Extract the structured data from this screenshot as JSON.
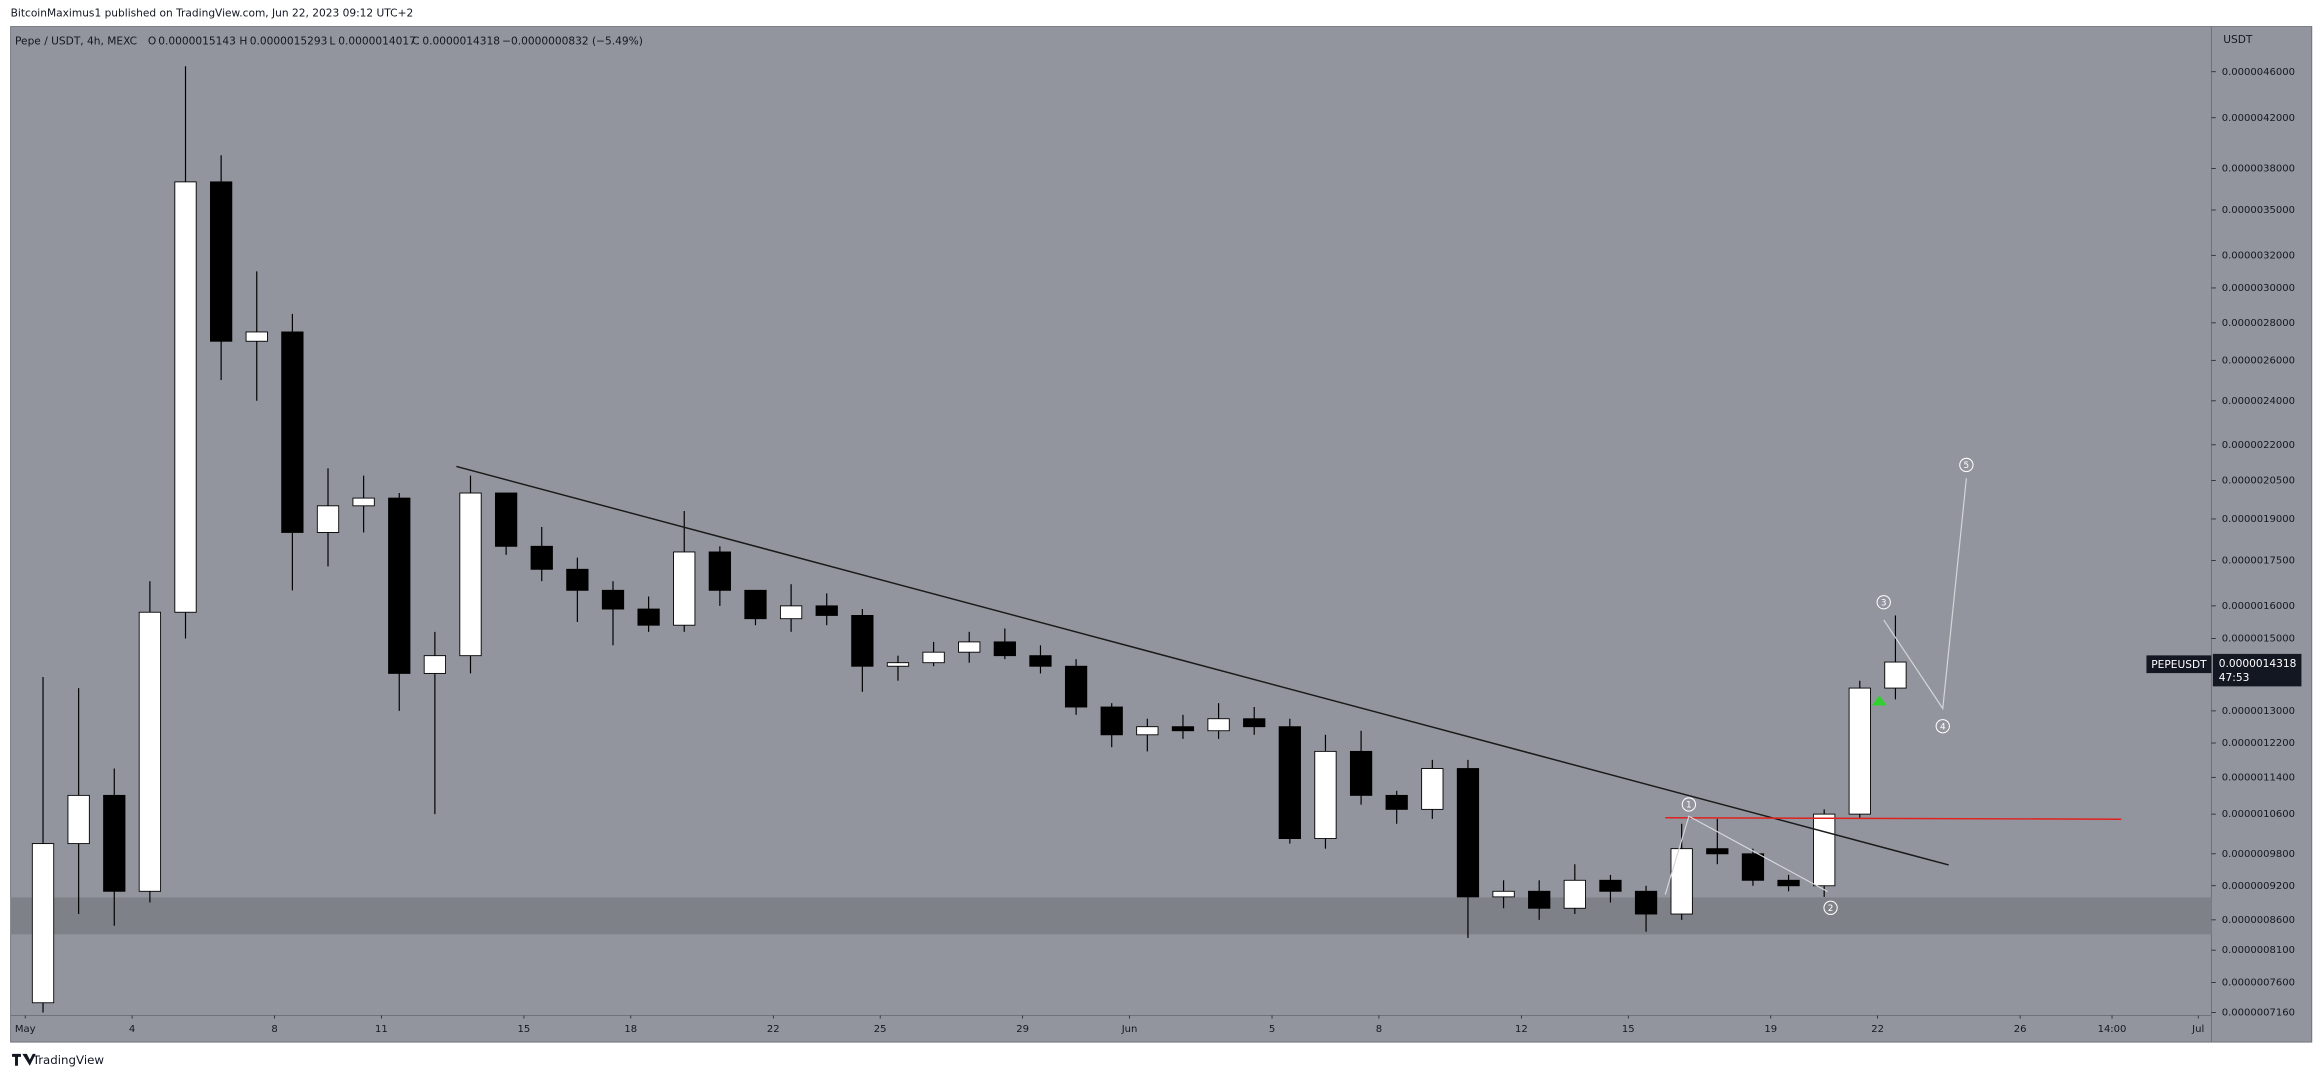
{
  "header": {
    "publisher": "BitcoinMaximus1 published on TradingView.com, Jun 22, 2023 09:12 UTC+2"
  },
  "ohlc_legend": {
    "o_label": "O",
    "o": "0.0000015143",
    "h_label": "H",
    "h": "0.0000015293",
    "l_label": "L",
    "l": "0.0000014017",
    "c_label": "C",
    "c": "0.0000014318",
    "change": "−0.0000000832 (−5.49%)"
  },
  "last_price": {
    "symbol": "PEPEUSDT",
    "price": "0.0000014318",
    "countdown": "47:53"
  },
  "waves": [
    "1",
    "2",
    "3",
    "4",
    "5"
  ],
  "footer": {
    "brand": "TradingView"
  },
  "chart_data": {
    "type": "candlestick",
    "title": "Pepe / USDT, 4h, MEXC",
    "ylabel": "USDT",
    "up_color": "#ffffff",
    "down_color": "#000000",
    "log_scale": true,
    "x": [
      0.5,
      1.5,
      2.5,
      3.5,
      4.5,
      5.5,
      6.5,
      7.5,
      8.5,
      9.5,
      10.5,
      11.5,
      12.5,
      13.5,
      14.5,
      15.5,
      16.5,
      17.5,
      18.5,
      19.5,
      20.5,
      21.5,
      22.5,
      23.5,
      24.5,
      25.5,
      26.5,
      27.5,
      28.5,
      29.5,
      30.5,
      31.5,
      32.5,
      33.5,
      34.5,
      35.5,
      36.5,
      37.5,
      38.5,
      39.5,
      40.5,
      41.5,
      42.5,
      43.5,
      44.5,
      45.5,
      46.5,
      47.5,
      48.5,
      49.5,
      50.5,
      51.5,
      52.5
    ],
    "open": [
      7.3e-07,
      1e-06,
      1.1e-06,
      9.1e-07,
      1.58e-06,
      3.7e-06,
      2.7e-06,
      2.75e-06,
      1.85e-06,
      1.95e-06,
      1.98e-06,
      1.4e-06,
      1.45e-06,
      2e-06,
      1.8e-06,
      1.72e-06,
      1.65e-06,
      1.59e-06,
      1.54e-06,
      1.78e-06,
      1.65e-06,
      1.56e-06,
      1.6e-06,
      1.57e-06,
      1.42e-06,
      1.43e-06,
      1.46e-06,
      1.49e-06,
      1.45e-06,
      1.42e-06,
      1.31e-06,
      1.24e-06,
      1.26e-06,
      1.25e-06,
      1.28e-06,
      1.26e-06,
      1.01e-06,
      1.2e-06,
      1.1e-06,
      1.07e-06,
      1.16e-06,
      9e-07,
      9.1e-07,
      8.8e-07,
      9.3e-07,
      9.1e-07,
      8.7e-07,
      9.9e-07,
      9.8e-07,
      9.3e-07,
      9.2e-07,
      1.06e-06,
      1.36e-06
    ],
    "high": [
      1.39e-06,
      1.36e-06,
      1.16e-06,
      1.68e-06,
      4.65e-06,
      3.9e-06,
      3.1e-06,
      2.85e-06,
      2.1e-06,
      2.07e-06,
      2e-06,
      1.52e-06,
      2.07e-06,
      2e-06,
      1.87e-06,
      1.76e-06,
      1.68e-06,
      1.63e-06,
      1.93e-06,
      1.8e-06,
      1.65e-06,
      1.67e-06,
      1.64e-06,
      1.59e-06,
      1.45e-06,
      1.49e-06,
      1.52e-06,
      1.53e-06,
      1.48e-06,
      1.44e-06,
      1.32e-06,
      1.28e-06,
      1.29e-06,
      1.32e-06,
      1.31e-06,
      1.28e-06,
      1.24e-06,
      1.25e-06,
      1.11e-06,
      1.18e-06,
      1.18e-06,
      9.3e-07,
      9.3e-07,
      9.6e-07,
      9.4e-07,
      9.2e-07,
      1.04e-06,
      1.05e-06,
      9.9e-07,
      9.4e-07,
      1.07e-06,
      1.38e-06,
      1.57e-06
    ],
    "low": [
      7.16e-07,
      8.7e-07,
      8.5e-07,
      8.9e-07,
      1.5e-06,
      2.5e-06,
      2.4e-06,
      1.65e-06,
      1.73e-06,
      1.85e-06,
      1.3e-06,
      1.06e-06,
      1.4e-06,
      1.77e-06,
      1.68e-06,
      1.55e-06,
      1.48e-06,
      1.52e-06,
      1.52e-06,
      1.6e-06,
      1.54e-06,
      1.52e-06,
      1.54e-06,
      1.35e-06,
      1.38e-06,
      1.42e-06,
      1.43e-06,
      1.44e-06,
      1.4e-06,
      1.29e-06,
      1.21e-06,
      1.2e-06,
      1.23e-06,
      1.23e-06,
      1.24e-06,
      1e-06,
      9.9e-07,
      1.08e-06,
      1.04e-06,
      1.05e-06,
      8.3e-07,
      8.8e-07,
      8.6e-07,
      8.7e-07,
      8.9e-07,
      8.4e-07,
      8.6e-07,
      9.6e-07,
      9.2e-07,
      9.1e-07,
      9e-07,
      1.05e-06,
      1.33e-06
    ],
    "close": [
      1e-06,
      1.1e-06,
      9.1e-07,
      1.58e-06,
      3.7e-06,
      2.7e-06,
      2.75e-06,
      1.85e-06,
      1.95e-06,
      1.98e-06,
      1.4e-06,
      1.45e-06,
      2e-06,
      1.8e-06,
      1.72e-06,
      1.65e-06,
      1.59e-06,
      1.54e-06,
      1.78e-06,
      1.65e-06,
      1.56e-06,
      1.6e-06,
      1.57e-06,
      1.42e-06,
      1.43e-06,
      1.46e-06,
      1.49e-06,
      1.45e-06,
      1.42e-06,
      1.31e-06,
      1.24e-06,
      1.26e-06,
      1.25e-06,
      1.28e-06,
      1.26e-06,
      1.01e-06,
      1.2e-06,
      1.1e-06,
      1.07e-06,
      1.16e-06,
      9e-07,
      9.1e-07,
      8.8e-07,
      9.3e-07,
      9.1e-07,
      8.7e-07,
      9.9e-07,
      9.8e-07,
      9.3e-07,
      9.2e-07,
      1.06e-06,
      1.36e-06,
      1.4318e-06
    ],
    "xlim": [
      -0.41,
      61.37
    ],
    "xticks": [
      {
        "value": 0,
        "label": "May"
      },
      {
        "value": 3,
        "label": "4"
      },
      {
        "value": 7,
        "label": "8"
      },
      {
        "value": 10,
        "label": "11"
      },
      {
        "value": 14,
        "label": "15"
      },
      {
        "value": 17,
        "label": "18"
      },
      {
        "value": 21,
        "label": "22"
      },
      {
        "value": 24,
        "label": "25"
      },
      {
        "value": 28,
        "label": "29"
      },
      {
        "value": 31,
        "label": "Jun"
      },
      {
        "value": 35,
        "label": "5"
      },
      {
        "value": 38,
        "label": "8"
      },
      {
        "value": 42,
        "label": "12"
      },
      {
        "value": 45,
        "label": "15"
      },
      {
        "value": 49,
        "label": "19"
      },
      {
        "value": 52,
        "label": "22"
      },
      {
        "value": 56,
        "label": "26"
      },
      {
        "value": 58.58,
        "label": "14:00"
      },
      {
        "value": 61,
        "label": "Jul"
      }
    ],
    "ylim": [
      7.118e-07,
      5.03e-06
    ],
    "yticks": [
      {
        "value": 4.6e-06,
        "label": "0.0000046000"
      },
      {
        "value": 4.2e-06,
        "label": "0.0000042000"
      },
      {
        "value": 3.8e-06,
        "label": "0.0000038000"
      },
      {
        "value": 3.5e-06,
        "label": "0.0000035000"
      },
      {
        "value": 3.2e-06,
        "label": "0.0000032000"
      },
      {
        "value": 3e-06,
        "label": "0.0000030000"
      },
      {
        "value": 2.8e-06,
        "label": "0.0000028000"
      },
      {
        "value": 2.6e-06,
        "label": "0.0000026000"
      },
      {
        "value": 2.4e-06,
        "label": "0.0000024000"
      },
      {
        "value": 2.2e-06,
        "label": "0.0000022000"
      },
      {
        "value": 2.05e-06,
        "label": "0.0000020500"
      },
      {
        "value": 1.9e-06,
        "label": "0.0000019000"
      },
      {
        "value": 1.75e-06,
        "label": "0.0000017500"
      },
      {
        "value": 1.6e-06,
        "label": "0.0000016000"
      },
      {
        "value": 1.5e-06,
        "label": "0.0000015000"
      },
      {
        "value": 1.3e-06,
        "label": "0.0000013000"
      },
      {
        "value": 1.22e-06,
        "label": "0.0000012200"
      },
      {
        "value": 1.14e-06,
        "label": "0.0000011400"
      },
      {
        "value": 1.06e-06,
        "label": "0.0000010600"
      },
      {
        "value": 9.8e-07,
        "label": "0.0000009800"
      },
      {
        "value": 9.2e-07,
        "label": "0.0000009200"
      },
      {
        "value": 8.6e-07,
        "label": "0.0000008600"
      },
      {
        "value": 8.1e-07,
        "label": "0.0000008100"
      },
      {
        "value": 7.6e-07,
        "label": "0.0000007600"
      },
      {
        "value": 7.16e-07,
        "label": "0.0000007160"
      }
    ]
  }
}
